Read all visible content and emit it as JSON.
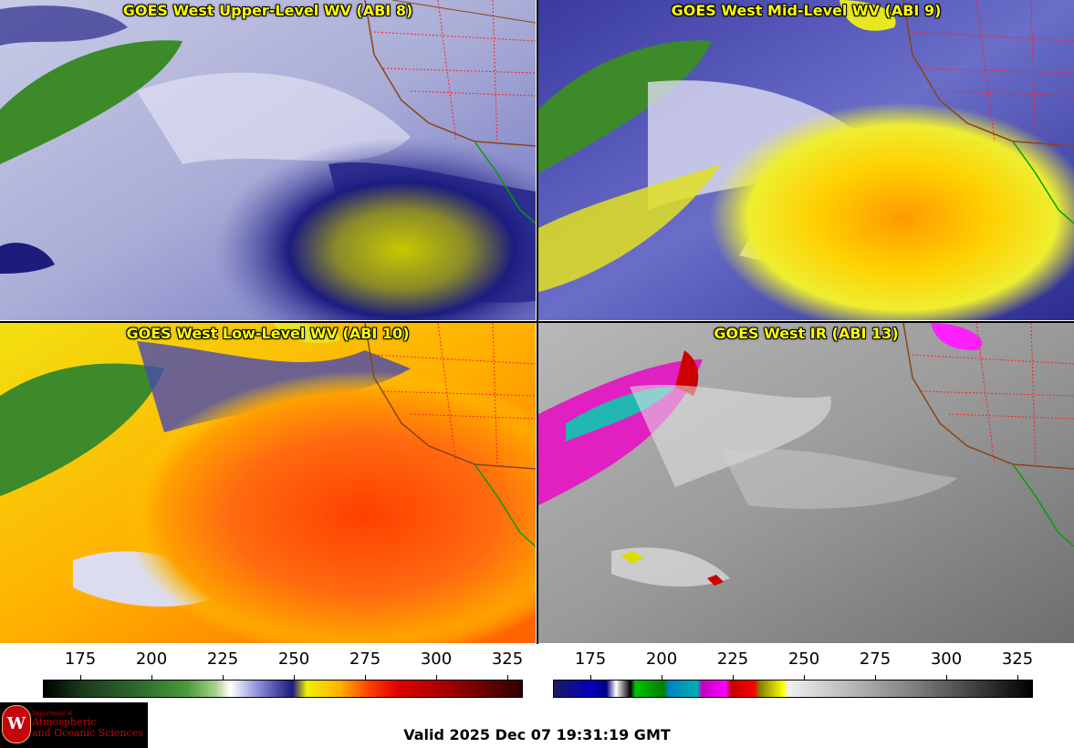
{
  "panels": [
    {
      "title": "GOES West Upper-Level WV (ABI 8)"
    },
    {
      "title": "GOES West Mid-Level WV (ABI 9)"
    },
    {
      "title": "GOES West Low-Level WV (ABI 10)"
    },
    {
      "title": "GOES West IR (ABI 13)"
    }
  ],
  "colorbars": [
    {
      "name": "wv-colorbar",
      "ticks": [
        "175",
        "200",
        "225",
        "250",
        "275",
        "300",
        "325"
      ]
    },
    {
      "name": "ir-colorbar",
      "ticks": [
        "175",
        "200",
        "225",
        "250",
        "275",
        "300",
        "325"
      ]
    }
  ],
  "logo": {
    "dept": "Department of",
    "line1": "Atmospheric",
    "line2": "and Oceanic Sciences",
    "seal": "W"
  },
  "valid_time": "Valid 2025 Dec 07 19:31:19 GMT",
  "colors": {
    "title_text": "#ffff00",
    "state_borders": "#ff0000",
    "coastline": "#8b4513",
    "mexico_coast": "#00a000"
  }
}
